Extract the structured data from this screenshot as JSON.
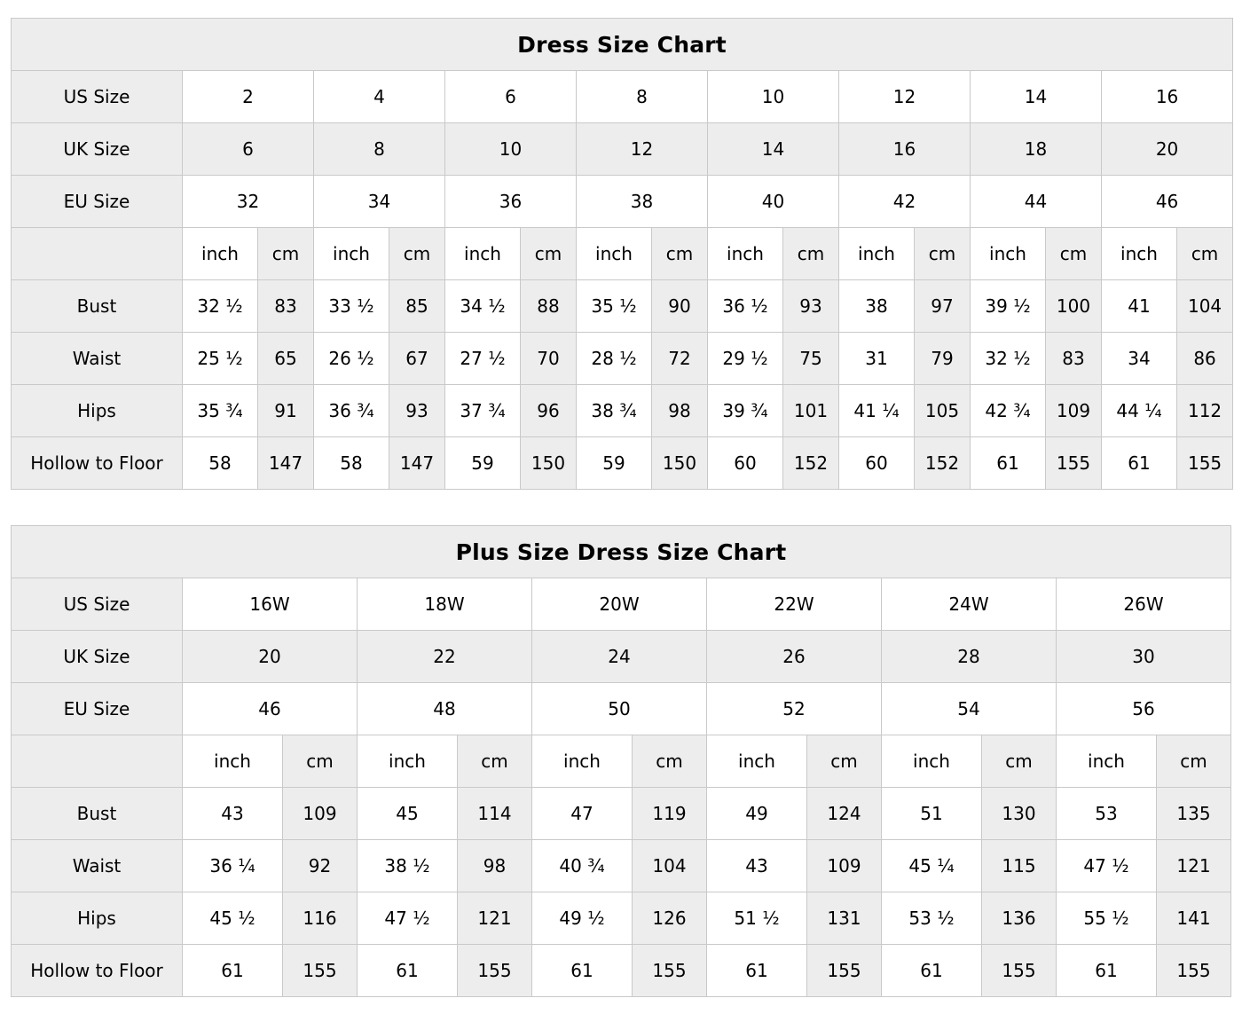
{
  "colors": {
    "cell_shaded": "#ededed",
    "cell_plain": "#ffffff",
    "border": "#c9c9c9",
    "text": "#000000"
  },
  "charts": [
    {
      "title": "Dress Size Chart",
      "unit_labels": [
        "inch",
        "cm"
      ],
      "size_rows": [
        {
          "label": "US Size",
          "values": [
            "2",
            "4",
            "6",
            "8",
            "10",
            "12",
            "14",
            "16"
          ]
        },
        {
          "label": "UK Size",
          "values": [
            "6",
            "8",
            "10",
            "12",
            "14",
            "16",
            "18",
            "20"
          ]
        },
        {
          "label": "EU Size",
          "values": [
            "32",
            "34",
            "36",
            "38",
            "40",
            "42",
            "44",
            "46"
          ]
        }
      ],
      "measure_rows": [
        {
          "label": "Bust",
          "inch": [
            "32 ½",
            "33 ½",
            "34 ½",
            "35 ½",
            "36 ½",
            "38",
            "39 ½",
            "41"
          ],
          "cm": [
            "83",
            "85",
            "88",
            "90",
            "93",
            "97",
            "100",
            "104"
          ]
        },
        {
          "label": "Waist",
          "inch": [
            "25 ½",
            "26 ½",
            "27 ½",
            "28 ½",
            "29 ½",
            "31",
            "32 ½",
            "34"
          ],
          "cm": [
            "65",
            "67",
            "70",
            "72",
            "75",
            "79",
            "83",
            "86"
          ]
        },
        {
          "label": "Hips",
          "inch": [
            "35 ¾",
            "36 ¾",
            "37 ¾",
            "38 ¾",
            "39 ¾",
            "41 ¼",
            "42 ¾",
            "44 ¼"
          ],
          "cm": [
            "91",
            "93",
            "96",
            "98",
            "101",
            "105",
            "109",
            "112"
          ]
        },
        {
          "label": "Hollow to Floor",
          "inch": [
            "58",
            "58",
            "59",
            "59",
            "60",
            "60",
            "61",
            "61"
          ],
          "cm": [
            "147",
            "147",
            "150",
            "150",
            "152",
            "152",
            "155",
            "155"
          ]
        }
      ]
    },
    {
      "title": "Plus Size Dress Size Chart",
      "unit_labels": [
        "inch",
        "cm"
      ],
      "size_rows": [
        {
          "label": "US Size",
          "values": [
            "16W",
            "18W",
            "20W",
            "22W",
            "24W",
            "26W"
          ]
        },
        {
          "label": "UK Size",
          "values": [
            "20",
            "22",
            "24",
            "26",
            "28",
            "30"
          ]
        },
        {
          "label": "EU Size",
          "values": [
            "46",
            "48",
            "50",
            "52",
            "54",
            "56"
          ]
        }
      ],
      "measure_rows": [
        {
          "label": "Bust",
          "inch": [
            "43",
            "45",
            "47",
            "49",
            "51",
            "53"
          ],
          "cm": [
            "109",
            "114",
            "119",
            "124",
            "130",
            "135"
          ]
        },
        {
          "label": "Waist",
          "inch": [
            "36 ¼",
            "38 ½",
            "40 ¾",
            "43",
            "45 ¼",
            "47 ½"
          ],
          "cm": [
            "92",
            "98",
            "104",
            "109",
            "115",
            "121"
          ]
        },
        {
          "label": "Hips",
          "inch": [
            "45 ½",
            "47 ½",
            "49 ½",
            "51 ½",
            "53 ½",
            "55 ½"
          ],
          "cm": [
            "116",
            "121",
            "126",
            "131",
            "136",
            "141"
          ]
        },
        {
          "label": "Hollow to Floor",
          "inch": [
            "61",
            "61",
            "61",
            "61",
            "61",
            "61"
          ],
          "cm": [
            "155",
            "155",
            "155",
            "155",
            "155",
            "155"
          ]
        }
      ]
    }
  ]
}
